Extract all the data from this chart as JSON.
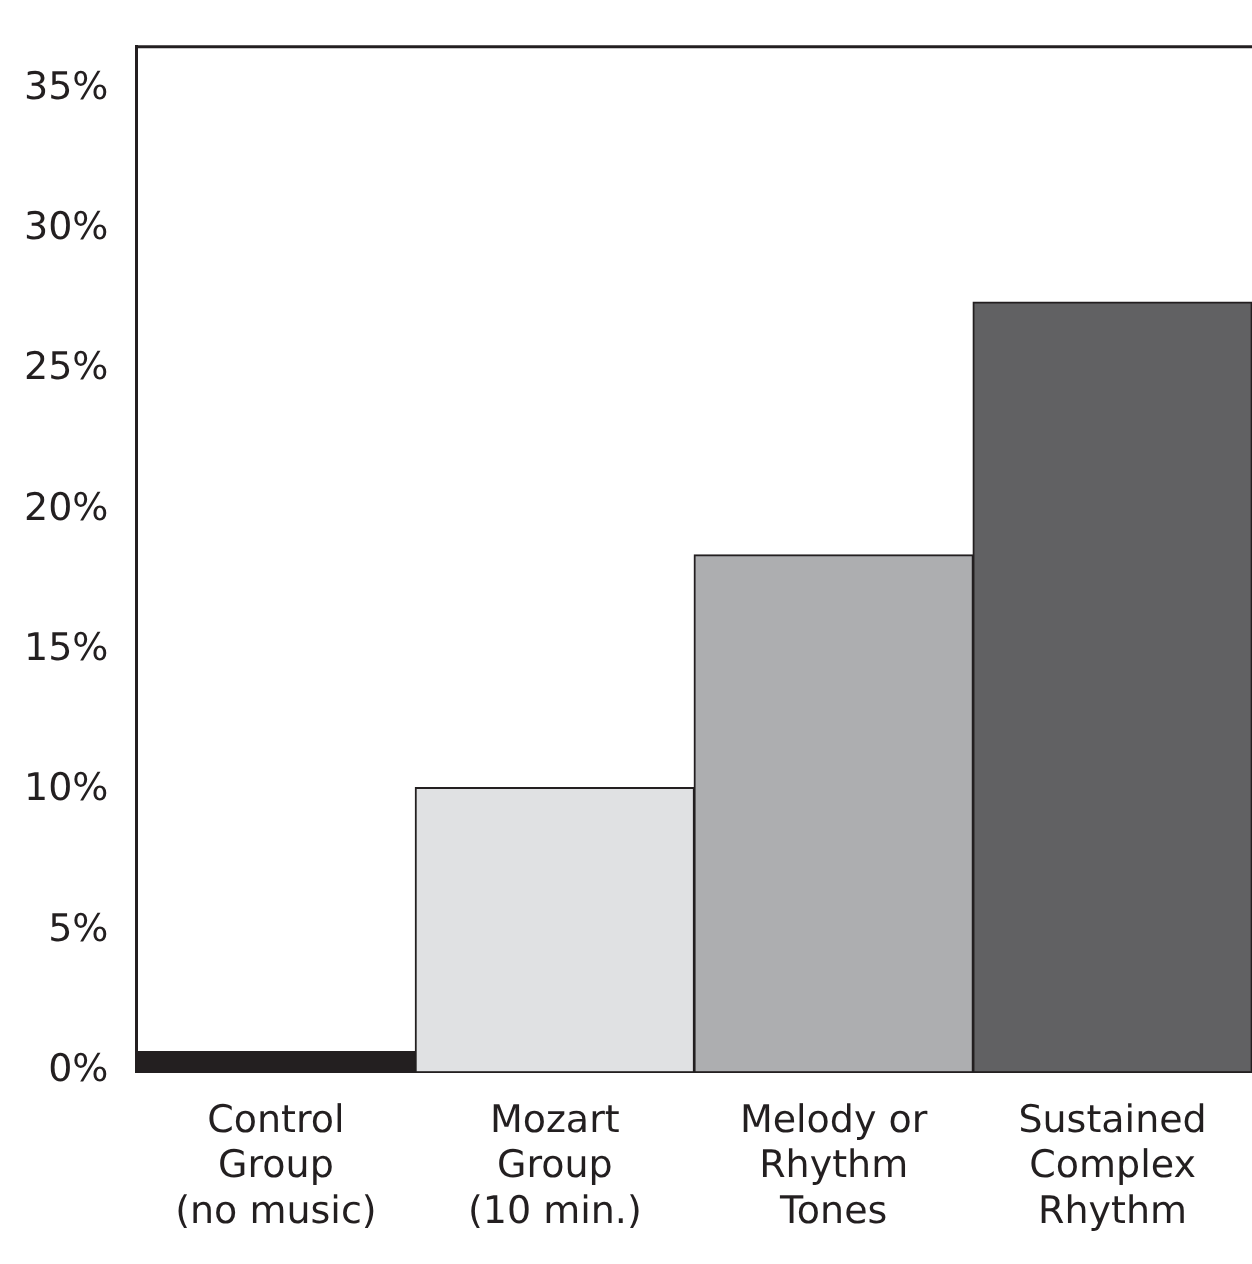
{
  "chart_data": {
    "type": "bar",
    "categories": [
      "Control\nGroup\n(no music)",
      "Mozart\nGroup\n(10 min.)",
      "Melody or\nRhythm\nTones",
      "Sustained\nComplex\nRhythm"
    ],
    "colors": [
      "#231f20",
      "#e0e1e3",
      "#adaeb0",
      "#616163"
    ],
    "values": [
      0.7,
      10.1,
      18.4,
      27.4
    ],
    "ylim": [
      0,
      36.5
    ],
    "yticks": [
      {
        "value": 0,
        "label": "0%"
      },
      {
        "value": 5,
        "label": "5%"
      },
      {
        "value": 10,
        "label": "10%"
      },
      {
        "value": 15,
        "label": "15%"
      },
      {
        "value": 20,
        "label": "20%"
      },
      {
        "value": 25,
        "label": "25%"
      },
      {
        "value": 30,
        "label": "30%"
      },
      {
        "value": 35,
        "label": "35%"
      }
    ],
    "grid": false,
    "legend": false
  }
}
